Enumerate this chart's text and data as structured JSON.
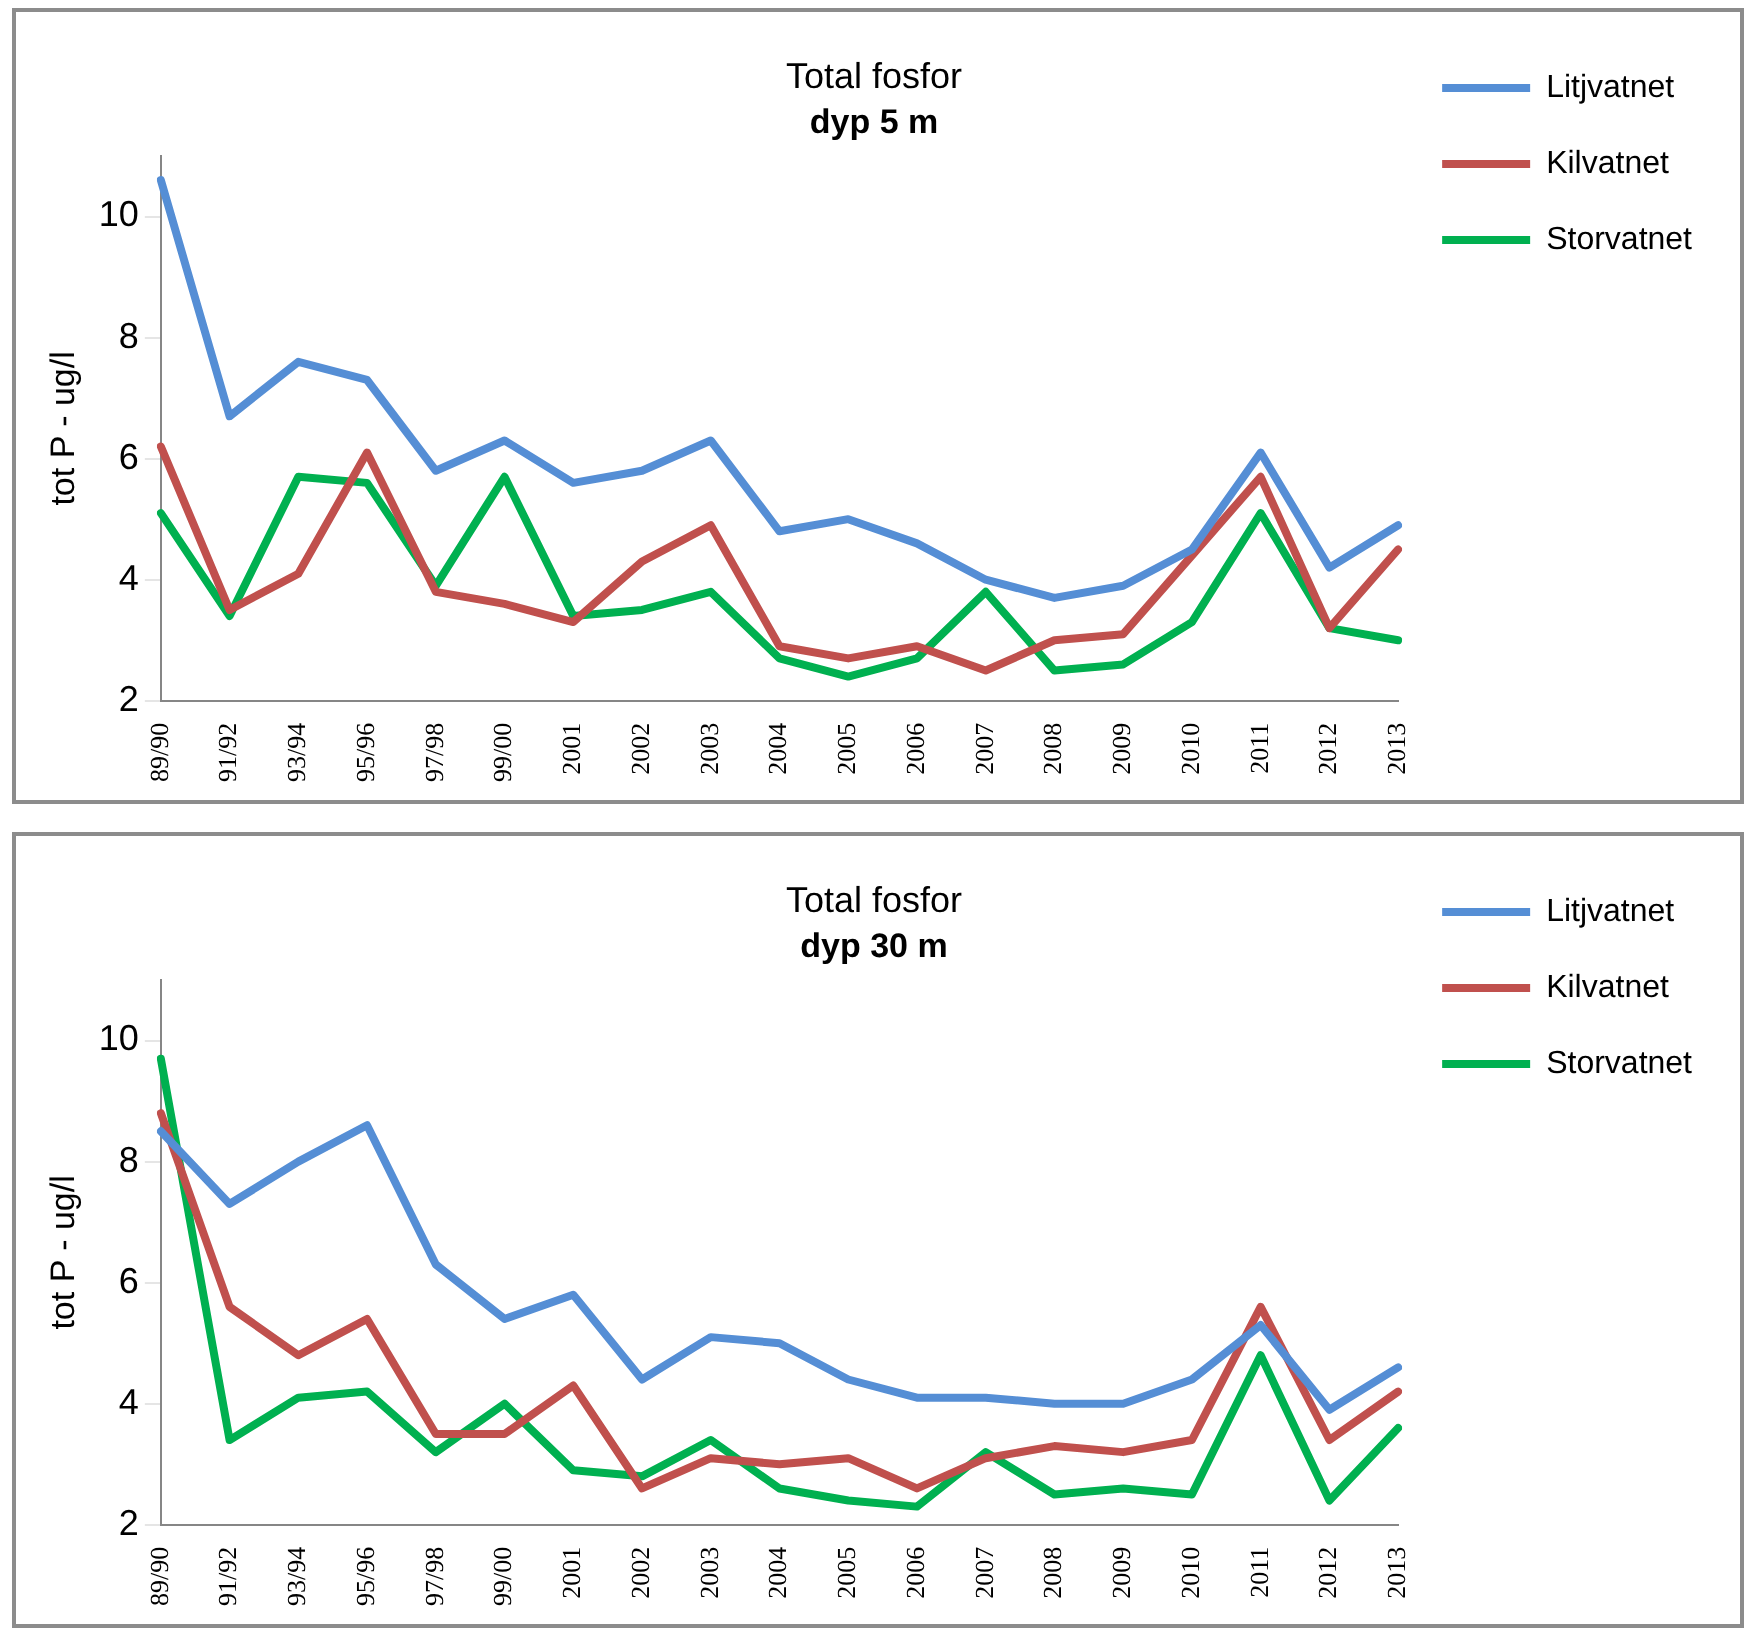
{
  "chart_data": [
    {
      "type": "line",
      "title": "Total fosfor",
      "subtitle": "dyp 5 m",
      "ylabel": "tot P - ug/l",
      "categories": [
        "89/90",
        "91/92",
        "93/94",
        "95/96",
        "97/98",
        "99/00",
        "2001",
        "2002",
        "2003",
        "2004",
        "2005",
        "2006",
        "2007",
        "2008",
        "2009",
        "2010",
        "2011",
        "2012",
        "2013"
      ],
      "ylim": [
        2,
        11
      ],
      "yticks": [
        2,
        4,
        6,
        8,
        10
      ],
      "grid": false,
      "legend": "top right",
      "marker": "none",
      "line_style": "solid",
      "series": [
        {
          "name": "Litjvatnet",
          "color": "#558ed5",
          "values": [
            10.6,
            6.7,
            7.6,
            7.3,
            5.8,
            6.3,
            5.6,
            5.8,
            6.3,
            4.8,
            5.0,
            4.6,
            4.0,
            3.7,
            3.9,
            4.5,
            6.1,
            4.2,
            4.9
          ]
        },
        {
          "name": "Kilvatnet",
          "color": "#c0504d",
          "values": [
            6.2,
            3.5,
            4.1,
            6.1,
            3.8,
            3.6,
            3.3,
            4.3,
            4.9,
            2.9,
            2.7,
            2.9,
            2.5,
            3.0,
            3.1,
            4.4,
            5.7,
            3.2,
            4.5
          ]
        },
        {
          "name": "Storvatnet",
          "color": "#00b050",
          "values": [
            5.1,
            3.4,
            5.7,
            5.6,
            3.9,
            5.7,
            3.4,
            3.5,
            3.8,
            2.7,
            2.4,
            2.7,
            3.8,
            2.5,
            2.6,
            3.3,
            5.1,
            3.2,
            3.0
          ]
        }
      ]
    },
    {
      "type": "line",
      "title": "Total fosfor",
      "subtitle": "dyp 30 m",
      "ylabel": "tot P - ug/l",
      "categories": [
        "89/90",
        "91/92",
        "93/94",
        "95/96",
        "97/98",
        "99/00",
        "2001",
        "2002",
        "2003",
        "2004",
        "2005",
        "2006",
        "2007",
        "2008",
        "2009",
        "2010",
        "2011",
        "2012",
        "2013"
      ],
      "ylim": [
        2,
        11
      ],
      "yticks": [
        2,
        4,
        6,
        8,
        10
      ],
      "grid": false,
      "legend": "top right",
      "marker": "none",
      "line_style": "solid",
      "series": [
        {
          "name": "Litjvatnet",
          "color": "#558ed5",
          "values": [
            8.5,
            7.3,
            8.0,
            8.6,
            6.3,
            5.4,
            5.8,
            4.4,
            5.1,
            5.0,
            4.4,
            4.1,
            4.1,
            4.0,
            4.0,
            4.4,
            5.3,
            3.9,
            4.6
          ]
        },
        {
          "name": "Kilvatnet",
          "color": "#c0504d",
          "values": [
            8.8,
            5.6,
            4.8,
            5.4,
            3.5,
            3.5,
            4.3,
            2.6,
            3.1,
            3.0,
            3.1,
            2.6,
            3.1,
            3.3,
            3.2,
            3.4,
            5.6,
            3.4,
            4.2
          ]
        },
        {
          "name": "Storvatnet",
          "color": "#00b050",
          "values": [
            9.7,
            3.4,
            4.1,
            4.2,
            3.2,
            4.0,
            2.9,
            2.8,
            3.4,
            2.6,
            2.4,
            2.3,
            3.2,
            2.5,
            2.6,
            2.5,
            4.8,
            2.4,
            3.6
          ]
        }
      ]
    }
  ]
}
